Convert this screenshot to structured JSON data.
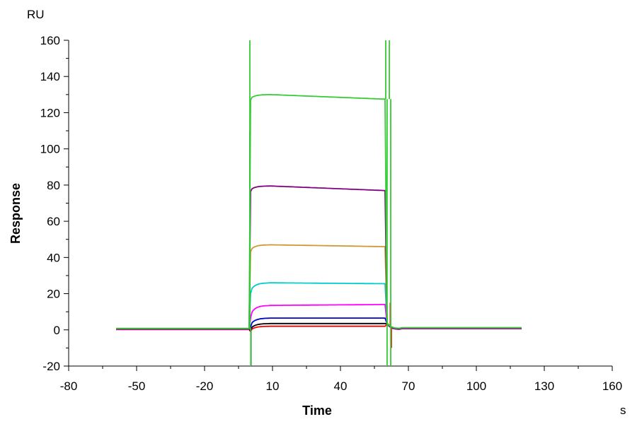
{
  "chart_data": {
    "type": "line",
    "title": "",
    "xlabel": "Time",
    "ylabel": "Response",
    "x_unit": "s",
    "y_unit": "RU",
    "xlim": [
      -80,
      160
    ],
    "ylim": [
      -20,
      160
    ],
    "x_ticks": [
      -80,
      -50,
      -20,
      10,
      40,
      70,
      100,
      130,
      160
    ],
    "y_ticks": [
      -20,
      0,
      20,
      40,
      60,
      80,
      100,
      120,
      140,
      160
    ],
    "x_tick_labels": [
      "-80",
      "-50",
      "-20",
      "10",
      "40",
      "70",
      "100",
      "130",
      "160"
    ],
    "y_tick_labels": [
      "-20",
      "0",
      "20",
      "40",
      "60",
      "80",
      "100",
      "120",
      "140",
      "160"
    ],
    "grid": false,
    "legend": "none",
    "injection_start": 0,
    "injection_end": 60,
    "series": [
      {
        "color": "#ff0000",
        "baseline": 0.2,
        "plateau_start": 2.0,
        "plateau_end": 2.0,
        "overshoot": 1.5,
        "spikes": [
          [
            0,
            5
          ],
          [
            62,
            15
          ],
          [
            62.5,
            -10
          ]
        ]
      },
      {
        "color": "#000000",
        "baseline": 0.3,
        "plateau_start": 3.5,
        "plateau_end": 3.5,
        "overshoot": 2,
        "spikes": [
          [
            0,
            8
          ]
        ]
      },
      {
        "color": "#0000cc",
        "baseline": 0.4,
        "plateau_start": 6.5,
        "plateau_end": 6.5,
        "overshoot": 2.5,
        "spikes": [
          [
            0,
            10
          ]
        ]
      },
      {
        "color": "#ff00ff",
        "baseline": 0.3,
        "plateau_start": 13.5,
        "plateau_end": 14.0,
        "overshoot": 3.5,
        "spikes": [
          [
            0,
            30
          ],
          [
            0.5,
            -10
          ]
        ]
      },
      {
        "color": "#00cccc",
        "baseline": 0.5,
        "plateau_start": 26.0,
        "plateau_end": 25.5,
        "overshoot": 3,
        "spikes": [
          [
            0,
            25
          ]
        ]
      },
      {
        "color": "#cc9933",
        "baseline": 0.6,
        "plateau_start": 47.0,
        "plateau_end": 46.0,
        "overshoot": 2,
        "spikes": []
      },
      {
        "color": "#800080",
        "baseline": 0.5,
        "plateau_start": 79.5,
        "plateau_end": 77.0,
        "overshoot": 1.5,
        "spikes": [
          [
            0,
            110
          ],
          [
            0.5,
            -22
          ]
        ]
      },
      {
        "color": "#33cc33",
        "baseline": 0.8,
        "plateau_start": 130.0,
        "plateau_end": 127.5,
        "overshoot": 1.5,
        "spikes": [
          [
            0,
            170
          ],
          [
            0.4,
            -22
          ],
          [
            60,
            170
          ],
          [
            60.6,
            -22
          ],
          [
            61.6,
            170
          ],
          [
            62.2,
            -22
          ]
        ]
      }
    ]
  }
}
